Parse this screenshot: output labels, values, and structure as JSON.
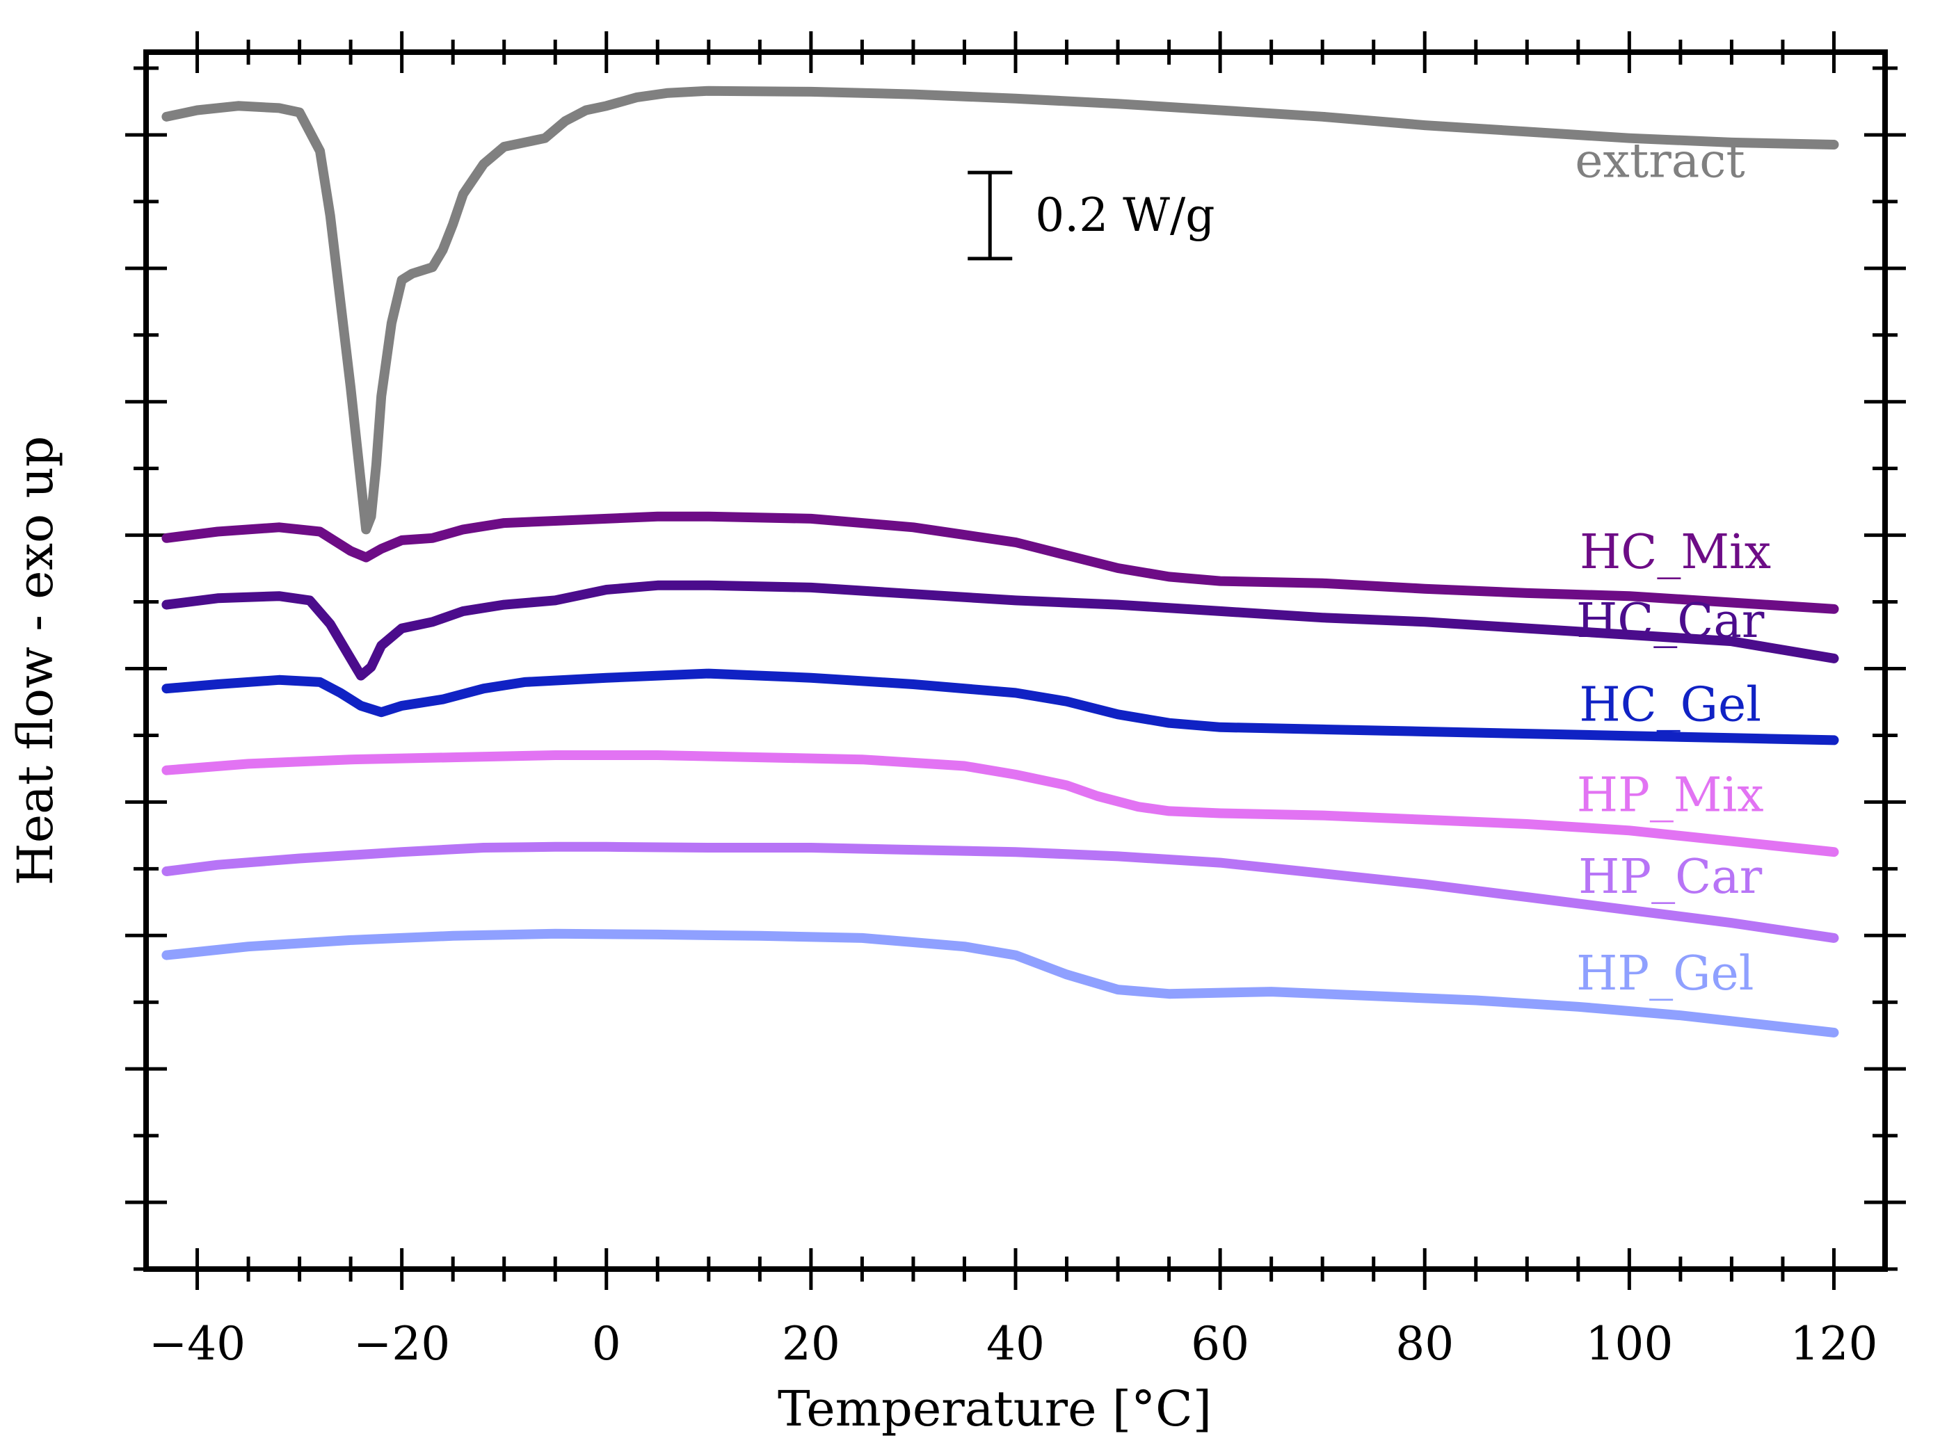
{
  "chart_data": {
    "type": "line",
    "title": "",
    "xlabel": "Temperature [°C]",
    "ylabel": "Heat flow - exo up",
    "xlim": [
      -45,
      125
    ],
    "xticks": [
      -40,
      -20,
      0,
      20,
      40,
      60,
      80,
      100,
      120
    ],
    "ylim": [
      -2.65,
      0.18
    ],
    "yticks_labeled": false,
    "grid": false,
    "scale_bar": {
      "label": "0.2 W/g",
      "value": 0.2,
      "x": 37.5,
      "y_center": -0.2
    },
    "series": [
      {
        "name": "extract",
        "color": "#808080",
        "label_pos": [
          103,
          -0.11
        ],
        "points": [
          [
            -43,
            0.03
          ],
          [
            -40,
            0.045
          ],
          [
            -36,
            0.055
          ],
          [
            -32,
            0.05
          ],
          [
            -30,
            0.04
          ],
          [
            -28,
            -0.05
          ],
          [
            -27,
            -0.2
          ],
          [
            -26,
            -0.4
          ],
          [
            -25,
            -0.6
          ],
          [
            -24,
            -0.82
          ],
          [
            -23.5,
            -0.93
          ],
          [
            -23,
            -0.9
          ],
          [
            -22.5,
            -0.78
          ],
          [
            -22,
            -0.62
          ],
          [
            -21,
            -0.45
          ],
          [
            -20,
            -0.35
          ],
          [
            -19,
            -0.335
          ],
          [
            -17,
            -0.32
          ],
          [
            -16,
            -0.28
          ],
          [
            -15,
            -0.22
          ],
          [
            -14,
            -0.15
          ],
          [
            -12,
            -0.08
          ],
          [
            -10,
            -0.04
          ],
          [
            -6,
            -0.02
          ],
          [
            -4,
            0.02
          ],
          [
            -2,
            0.045
          ],
          [
            0,
            0.055
          ],
          [
            3,
            0.075
          ],
          [
            6,
            0.085
          ],
          [
            10,
            0.09
          ],
          [
            20,
            0.088
          ],
          [
            30,
            0.082
          ],
          [
            40,
            0.072
          ],
          [
            50,
            0.06
          ],
          [
            60,
            0.045
          ],
          [
            70,
            0.03
          ],
          [
            80,
            0.01
          ],
          [
            90,
            -0.005
          ],
          [
            100,
            -0.02
          ],
          [
            110,
            -0.03
          ],
          [
            120,
            -0.035
          ]
        ]
      },
      {
        "name": "HC_Mix",
        "color": "#6d0c86",
        "label_pos": [
          104.5,
          -1.02
        ],
        "points": [
          [
            -43,
            -0.95
          ],
          [
            -38,
            -0.935
          ],
          [
            -32,
            -0.925
          ],
          [
            -28,
            -0.935
          ],
          [
            -25,
            -0.98
          ],
          [
            -23.5,
            -0.995
          ],
          [
            -22,
            -0.975
          ],
          [
            -20,
            -0.955
          ],
          [
            -17,
            -0.95
          ],
          [
            -14,
            -0.93
          ],
          [
            -10,
            -0.915
          ],
          [
            -5,
            -0.91
          ],
          [
            0,
            -0.905
          ],
          [
            5,
            -0.9
          ],
          [
            10,
            -0.9
          ],
          [
            20,
            -0.905
          ],
          [
            30,
            -0.925
          ],
          [
            40,
            -0.96
          ],
          [
            45,
            -0.99
          ],
          [
            50,
            -1.02
          ],
          [
            55,
            -1.04
          ],
          [
            60,
            -1.05
          ],
          [
            70,
            -1.055
          ],
          [
            80,
            -1.068
          ],
          [
            90,
            -1.078
          ],
          [
            100,
            -1.085
          ],
          [
            110,
            -1.1
          ],
          [
            120,
            -1.115
          ]
        ]
      },
      {
        "name": "HC_Car",
        "color": "#4b0c8c",
        "label_pos": [
          104,
          -1.18
        ],
        "points": [
          [
            -43,
            -1.105
          ],
          [
            -38,
            -1.09
          ],
          [
            -32,
            -1.085
          ],
          [
            -29,
            -1.095
          ],
          [
            -27,
            -1.15
          ],
          [
            -25,
            -1.23
          ],
          [
            -24,
            -1.27
          ],
          [
            -23,
            -1.25
          ],
          [
            -22,
            -1.2
          ],
          [
            -20,
            -1.16
          ],
          [
            -17,
            -1.145
          ],
          [
            -14,
            -1.12
          ],
          [
            -10,
            -1.105
          ],
          [
            -5,
            -1.095
          ],
          [
            0,
            -1.07
          ],
          [
            5,
            -1.06
          ],
          [
            10,
            -1.06
          ],
          [
            20,
            -1.065
          ],
          [
            30,
            -1.08
          ],
          [
            40,
            -1.095
          ],
          [
            50,
            -1.105
          ],
          [
            60,
            -1.12
          ],
          [
            70,
            -1.135
          ],
          [
            80,
            -1.145
          ],
          [
            90,
            -1.16
          ],
          [
            100,
            -1.175
          ],
          [
            110,
            -1.19
          ],
          [
            120,
            -1.23
          ]
        ]
      },
      {
        "name": "HC_Gel",
        "color": "#1022c4",
        "label_pos": [
          104,
          -1.375
        ],
        "points": [
          [
            -43,
            -1.3
          ],
          [
            -38,
            -1.29
          ],
          [
            -32,
            -1.28
          ],
          [
            -28,
            -1.285
          ],
          [
            -26,
            -1.31
          ],
          [
            -24,
            -1.34
          ],
          [
            -22,
            -1.355
          ],
          [
            -20,
            -1.34
          ],
          [
            -16,
            -1.325
          ],
          [
            -12,
            -1.3
          ],
          [
            -8,
            -1.285
          ],
          [
            0,
            -1.275
          ],
          [
            10,
            -1.265
          ],
          [
            20,
            -1.275
          ],
          [
            30,
            -1.29
          ],
          [
            40,
            -1.31
          ],
          [
            45,
            -1.33
          ],
          [
            50,
            -1.36
          ],
          [
            55,
            -1.38
          ],
          [
            60,
            -1.39
          ],
          [
            70,
            -1.395
          ],
          [
            80,
            -1.4
          ],
          [
            90,
            -1.405
          ],
          [
            100,
            -1.41
          ],
          [
            110,
            -1.415
          ],
          [
            120,
            -1.42
          ]
        ]
      },
      {
        "name": "HP_Mix",
        "color": "#e273f3",
        "label_pos": [
          104,
          -1.585
        ],
        "points": [
          [
            -43,
            -1.49
          ],
          [
            -35,
            -1.475
          ],
          [
            -25,
            -1.465
          ],
          [
            -15,
            -1.46
          ],
          [
            -5,
            -1.455
          ],
          [
            5,
            -1.455
          ],
          [
            15,
            -1.46
          ],
          [
            25,
            -1.465
          ],
          [
            35,
            -1.48
          ],
          [
            40,
            -1.5
          ],
          [
            45,
            -1.525
          ],
          [
            48,
            -1.55
          ],
          [
            52,
            -1.575
          ],
          [
            55,
            -1.585
          ],
          [
            60,
            -1.59
          ],
          [
            70,
            -1.595
          ],
          [
            80,
            -1.605
          ],
          [
            90,
            -1.615
          ],
          [
            100,
            -1.63
          ],
          [
            110,
            -1.655
          ],
          [
            120,
            -1.68
          ]
        ]
      },
      {
        "name": "HP_Car",
        "color": "#b774f6",
        "label_pos": [
          104,
          -1.775
        ],
        "points": [
          [
            -43,
            -1.725
          ],
          [
            -38,
            -1.71
          ],
          [
            -30,
            -1.695
          ],
          [
            -20,
            -1.68
          ],
          [
            -12,
            -1.67
          ],
          [
            -5,
            -1.668
          ],
          [
            0,
            -1.668
          ],
          [
            10,
            -1.67
          ],
          [
            20,
            -1.67
          ],
          [
            30,
            -1.675
          ],
          [
            40,
            -1.68
          ],
          [
            50,
            -1.69
          ],
          [
            60,
            -1.705
          ],
          [
            70,
            -1.73
          ],
          [
            80,
            -1.755
          ],
          [
            90,
            -1.785
          ],
          [
            100,
            -1.815
          ],
          [
            110,
            -1.845
          ],
          [
            120,
            -1.88
          ]
        ]
      },
      {
        "name": "HP_Gel",
        "color": "#8fa0ff",
        "label_pos": [
          103.5,
          -2.0
        ],
        "points": [
          [
            -43,
            -1.92
          ],
          [
            -35,
            -1.9
          ],
          [
            -25,
            -1.885
          ],
          [
            -15,
            -1.875
          ],
          [
            -5,
            -1.87
          ],
          [
            5,
            -1.872
          ],
          [
            15,
            -1.875
          ],
          [
            25,
            -1.88
          ],
          [
            35,
            -1.9
          ],
          [
            40,
            -1.92
          ],
          [
            45,
            -1.965
          ],
          [
            50,
            -2.0
          ],
          [
            55,
            -2.01
          ],
          [
            65,
            -2.005
          ],
          [
            75,
            -2.015
          ],
          [
            85,
            -2.025
          ],
          [
            95,
            -2.04
          ],
          [
            105,
            -2.06
          ],
          [
            120,
            -2.1
          ]
        ]
      }
    ]
  }
}
